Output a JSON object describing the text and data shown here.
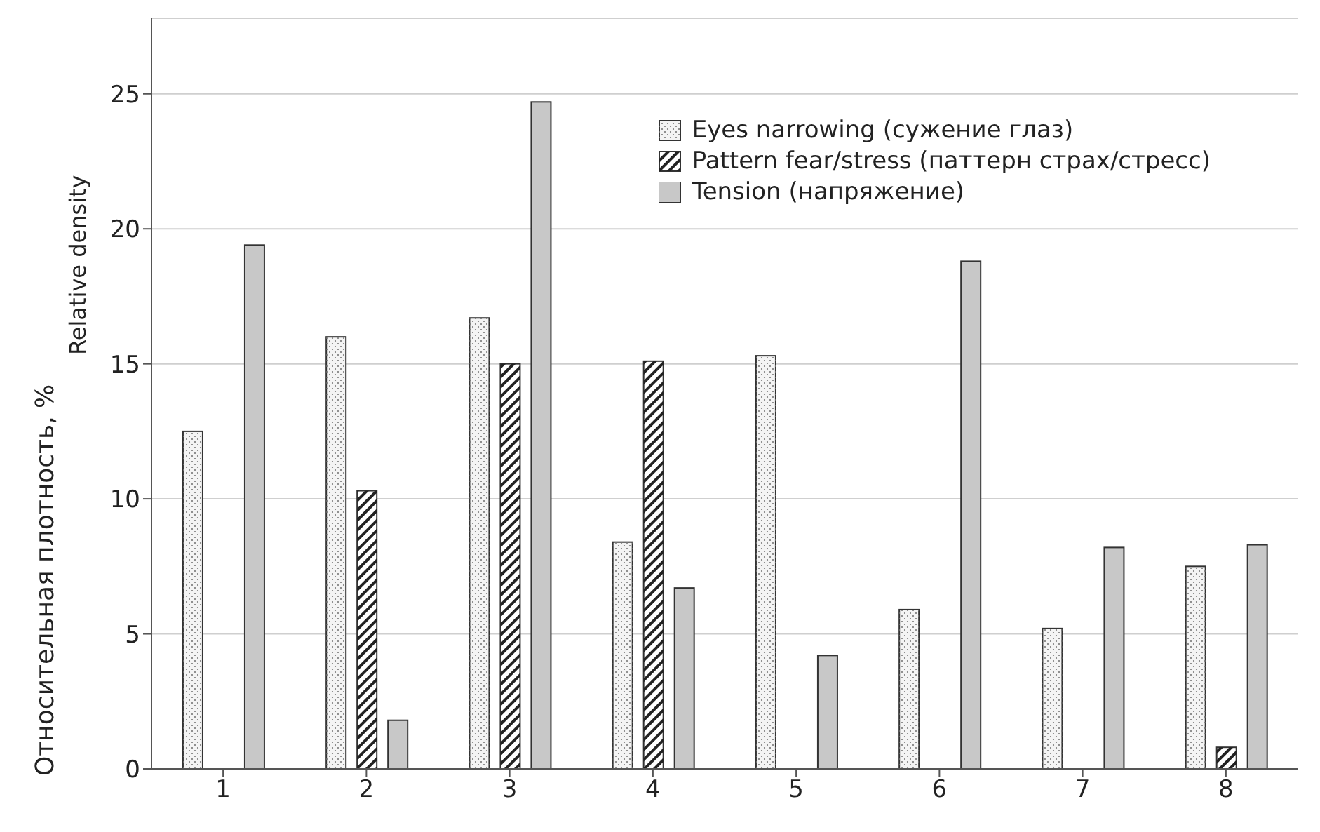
{
  "chart_data": {
    "type": "bar",
    "ylabel": "Относительная плотность, %",
    "annotations": [
      "Relative density"
    ],
    "categories": [
      "1",
      "2",
      "3",
      "4",
      "5",
      "6",
      "7",
      "8"
    ],
    "series": [
      {
        "name": "Eyes narrowing (сужение глаз)",
        "color": "#f4f4f4",
        "values": [
          12.5,
          16.0,
          16.7,
          8.4,
          15.3,
          5.9,
          5.2,
          7.5
        ]
      },
      {
        "name": "Pattern fear/stress (паттерн страх/стресс)",
        "color": "#ffffff",
        "values": [
          0,
          10.3,
          15.0,
          15.1,
          0,
          0,
          0,
          0.8
        ]
      },
      {
        "name": "Tension (напряжение)",
        "color": "#c8c8c8",
        "values": [
          19.4,
          1.8,
          24.7,
          6.7,
          4.2,
          18.8,
          8.2,
          8.3
        ]
      }
    ],
    "ylim": [
      0,
      27.8
    ],
    "yticks": [
      0,
      5,
      10,
      15,
      20,
      25
    ],
    "grid": "y",
    "legend": "top right"
  }
}
